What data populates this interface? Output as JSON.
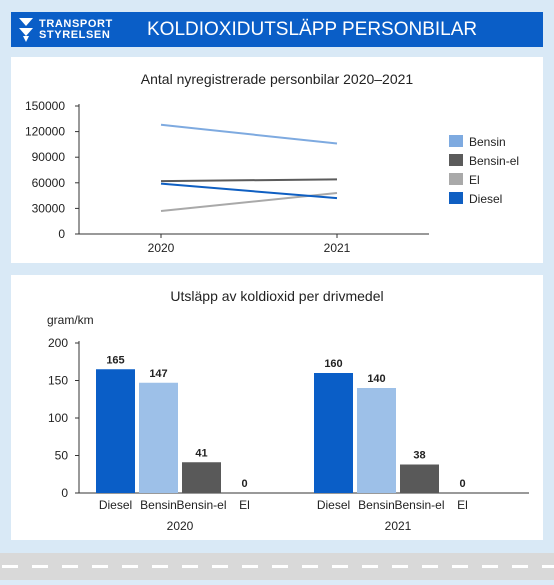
{
  "header": {
    "logo_line1": "TRANSPORT",
    "logo_line2": "STYRELSEN",
    "title": "KOLDIOXIDUTSLÄPP PERSONBILAR",
    "logo_icon": "arrow-logo-icon"
  },
  "colors": {
    "brand": "#0a5ec7",
    "Bensin_line": "#7eaae0",
    "Bensin_el_line": "#5b5b5b",
    "El_line": "#a9a9a9",
    "Diesel_line": "#0f5fc2",
    "Diesel_bar": "#0a5ec7",
    "Bensin_bar": "#9dc0e8",
    "Bensin_el_bar": "#595959",
    "El_bar": "#a9a9a9"
  },
  "chart_data": [
    {
      "type": "line",
      "title": "Antal nyregistrerade personbilar 2020–2021",
      "x": [
        "2020",
        "2021"
      ],
      "ylim": [
        0,
        150000
      ],
      "yticks": [
        "0",
        "30000",
        "60000",
        "90000",
        "120000",
        "150000"
      ],
      "grid": false,
      "legend_position": "right",
      "series": [
        {
          "name": "Bensin",
          "values": [
            128000,
            106000
          ],
          "color": "#7eaae0"
        },
        {
          "name": "Bensin-el",
          "values": [
            62000,
            64000
          ],
          "color": "#5b5b5b"
        },
        {
          "name": "El",
          "values": [
            27000,
            48000
          ],
          "color": "#a9a9a9"
        },
        {
          "name": "Diesel",
          "values": [
            59000,
            42000
          ],
          "color": "#0f5fc2"
        }
      ]
    },
    {
      "type": "bar",
      "title": "Utsläpp av koldioxid per drivmedel",
      "ylabel": "gram/km",
      "ylim": [
        0,
        200
      ],
      "yticks": [
        "0",
        "50",
        "100",
        "150",
        "200"
      ],
      "grid": false,
      "groups": [
        {
          "label": "2020",
          "bars": [
            {
              "name": "Diesel",
              "value": 165,
              "label": "165",
              "color": "#0a5ec7"
            },
            {
              "name": "Bensin",
              "value": 147,
              "label": "147",
              "color": "#9dc0e8"
            },
            {
              "name": "Bensin-el",
              "value": 41,
              "label": "41",
              "color": "#595959"
            },
            {
              "name": "El",
              "value": 0,
              "label": "0",
              "color": "#a9a9a9"
            }
          ]
        },
        {
          "label": "2021",
          "bars": [
            {
              "name": "Diesel",
              "value": 160,
              "label": "160",
              "color": "#0a5ec7"
            },
            {
              "name": "Bensin",
              "value": 140,
              "label": "140",
              "color": "#9dc0e8"
            },
            {
              "name": "Bensin-el",
              "value": 38,
              "label": "38",
              "color": "#595959"
            },
            {
              "name": "El",
              "value": 0,
              "label": "0",
              "color": "#a9a9a9"
            }
          ]
        }
      ]
    }
  ]
}
